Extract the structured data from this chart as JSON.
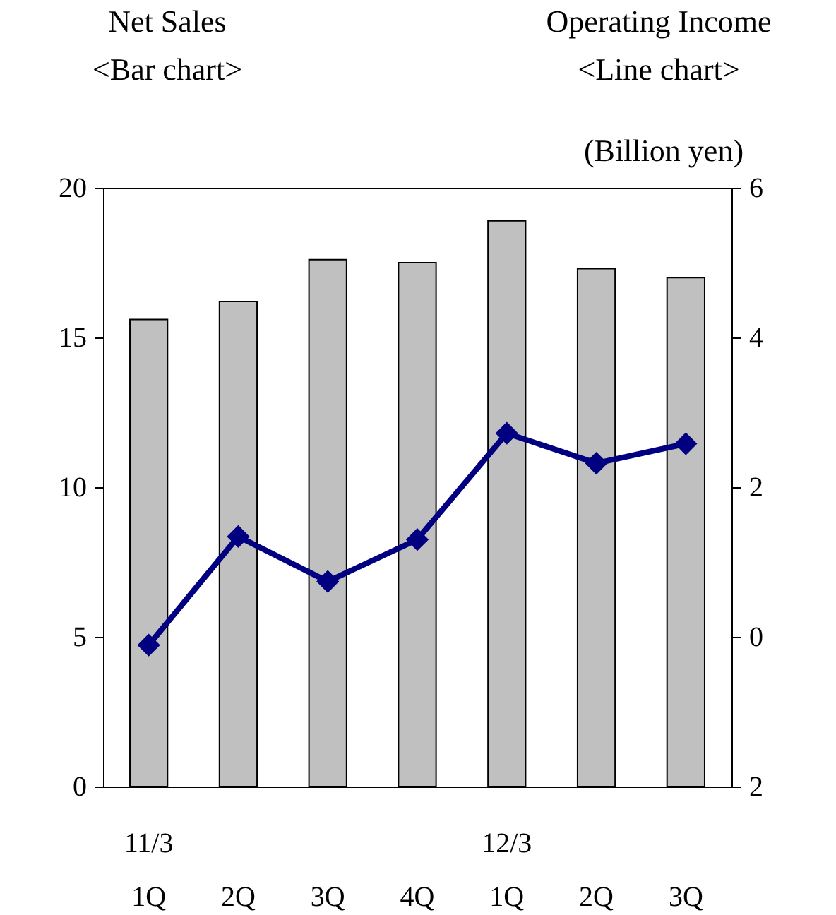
{
  "chart_data": {
    "type": "bar",
    "ylabel": "Net Sales\n<Bar chart>",
    "y2label": "Operating Income\n<Line chart>",
    "annotations": [
      "(Billion yen)"
    ],
    "categories": [
      "11/3\n1Q",
      "2Q",
      "3Q",
      "4Q",
      "12/3\n1Q",
      "2Q",
      "3Q"
    ],
    "series": [
      {
        "color": "#c0c0c0",
        "values": [
          15.6,
          16.2,
          17.6,
          17.5,
          18.9,
          17.3,
          17.0
        ]
      },
      {
        "type": "line",
        "axis": "y2",
        "color": "#000080",
        "marker": "diamond",
        "values": [
          -0.11,
          1.34,
          0.74,
          1.3,
          2.72,
          2.32,
          2.58
        ]
      }
    ],
    "ylim": [
      0,
      20
    ],
    "yticks": [
      0,
      5,
      10,
      15,
      20
    ],
    "y2lim": [
      -2,
      6
    ],
    "y2ticks": [
      {
        "value": -2,
        "label": "2"
      },
      0,
      2,
      4,
      6
    ],
    "grid": false
  }
}
